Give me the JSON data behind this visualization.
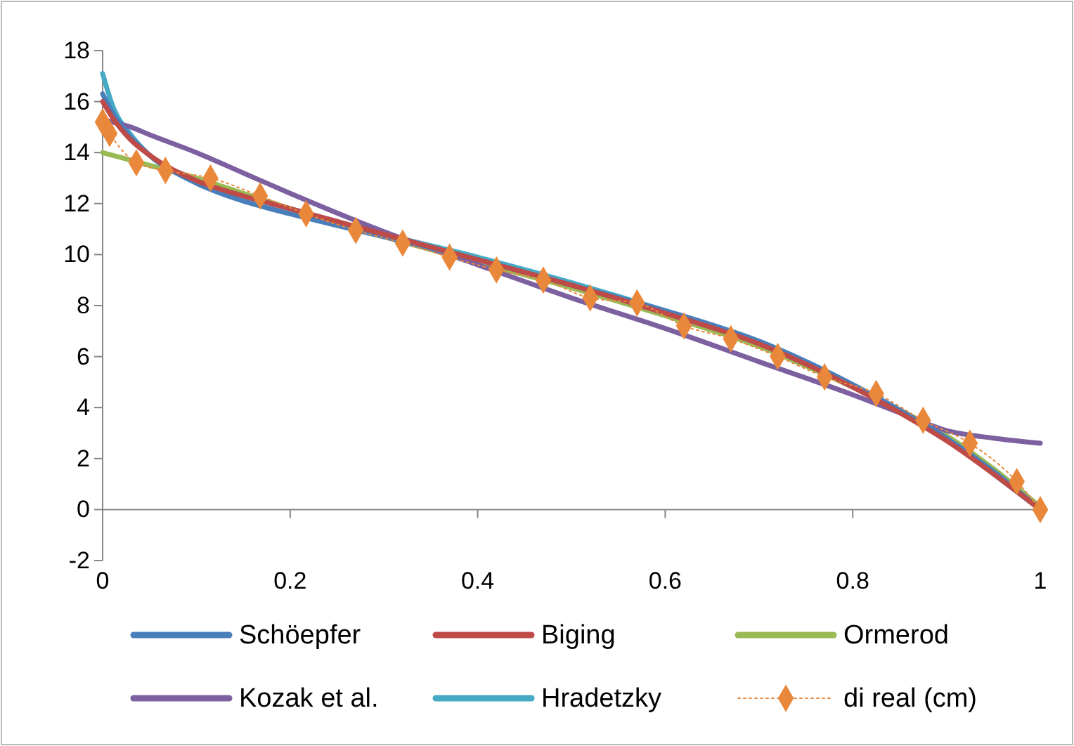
{
  "chart_data": {
    "type": "line",
    "xlim": [
      0,
      1
    ],
    "xticks": [
      0,
      0.2,
      0.4,
      0.6,
      0.8,
      1
    ],
    "ylim": [
      -2,
      18
    ],
    "yticks": [
      -2,
      0,
      2,
      4,
      6,
      8,
      10,
      12,
      14,
      16,
      18
    ],
    "grid": false,
    "legend": "bottom",
    "x": [
      0,
      0.01,
      0.03,
      0.05,
      0.1,
      0.15,
      0.2,
      0.3,
      0.4,
      0.5,
      0.6,
      0.7,
      0.8,
      0.85,
      0.9,
      0.95,
      1
    ],
    "series": [
      {
        "name": "Schöepfer",
        "color": "#4a7ebb",
        "values": [
          16.3,
          15.6,
          14.6,
          13.9,
          12.8,
          12.1,
          11.6,
          10.7,
          9.8,
          8.8,
          7.8,
          6.6,
          4.9,
          3.9,
          2.8,
          1.5,
          0
        ]
      },
      {
        "name": "Biging",
        "color": "#be4b48",
        "values": [
          16.0,
          15.4,
          14.5,
          13.9,
          12.9,
          12.3,
          11.8,
          10.8,
          9.8,
          8.8,
          7.7,
          6.5,
          4.8,
          3.8,
          2.7,
          1.4,
          0
        ]
      },
      {
        "name": "Ormerod",
        "color": "#98b954",
        "values": [
          14.0,
          13.9,
          13.7,
          13.5,
          13.0,
          12.4,
          11.8,
          10.7,
          9.7,
          8.7,
          7.6,
          6.4,
          4.8,
          3.9,
          2.9,
          1.6,
          0.1
        ]
      },
      {
        "name": "Kozak et al.",
        "color": "#7d60a0",
        "values": [
          15.3,
          15.2,
          15.0,
          14.7,
          14.0,
          13.2,
          12.4,
          10.9,
          9.6,
          8.3,
          7.1,
          5.8,
          4.5,
          3.8,
          3.1,
          2.8,
          2.6
        ]
      },
      {
        "name": "Hradetzky",
        "color": "#46aac5",
        "values": [
          17.1,
          15.9,
          14.7,
          13.9,
          12.9,
          12.3,
          11.8,
          10.8,
          9.9,
          8.9,
          7.8,
          6.6,
          4.9,
          3.9,
          2.8,
          1.4,
          0
        ]
      },
      {
        "name": "di real (cm)",
        "color": "#e9883a",
        "marker": "diamond",
        "line_style": "dotted",
        "x": [
          0,
          0.0075,
          0.036,
          0.067,
          0.115,
          0.168,
          0.217,
          0.27,
          0.32,
          0.37,
          0.42,
          0.47,
          0.52,
          0.57,
          0.62,
          0.67,
          0.72,
          0.77,
          0.825,
          0.875,
          0.925,
          0.975,
          1
        ],
        "values": [
          15.2,
          14.75,
          13.6,
          13.3,
          13.0,
          12.3,
          11.6,
          10.95,
          10.45,
          9.9,
          9.4,
          9.0,
          8.3,
          8.1,
          7.2,
          6.7,
          6.0,
          5.2,
          4.55,
          3.5,
          2.6,
          1.1,
          0
        ]
      }
    ]
  }
}
